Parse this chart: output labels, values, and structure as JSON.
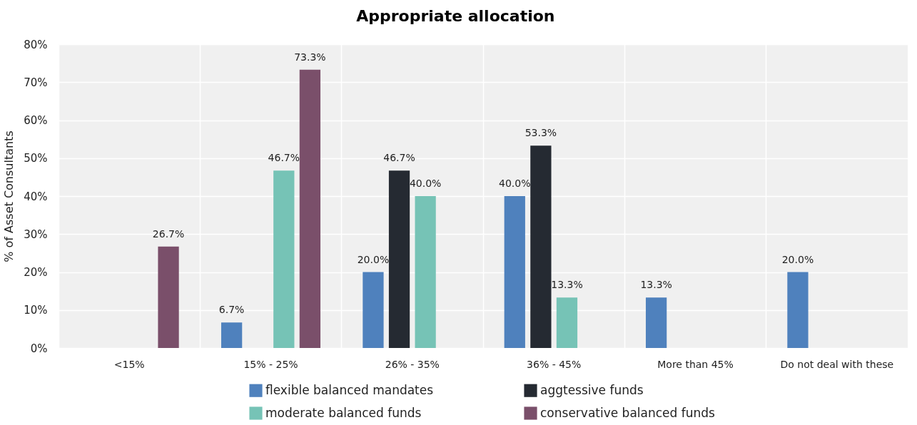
{
  "chart_data": {
    "type": "bar",
    "title": "Appropriate allocation",
    "ylabel": "% of Asset Consultants",
    "categories": [
      "<15%",
      "15% - 25%",
      "26% - 35%",
      "36% - 45%",
      "More than 45%",
      "Do not deal with these"
    ],
    "series": [
      {
        "name": "flexible balanced mandates",
        "color": "#4f81bd",
        "values": [
          null,
          6.7,
          20.0,
          40.0,
          13.3,
          20.0
        ],
        "value_labels": [
          null,
          "6.7%",
          "20.0%",
          "40.0%",
          "13.3%",
          "20.0%"
        ]
      },
      {
        "name": "aggtessive funds",
        "color": "#252a32",
        "values": [
          null,
          null,
          46.7,
          53.3,
          null,
          null
        ],
        "value_labels": [
          null,
          null,
          "46.7%",
          "53.3%",
          null,
          null
        ]
      },
      {
        "name": "moderate balanced funds",
        "color": "#76c3b6",
        "values": [
          null,
          46.7,
          40.0,
          13.3,
          null,
          null
        ],
        "value_labels": [
          null,
          "46.7%",
          "40.0%",
          "13.3%",
          null,
          null
        ]
      },
      {
        "name": "conservative balanced funds",
        "color": "#7a4f6a",
        "values": [
          26.7,
          73.3,
          null,
          null,
          null,
          null
        ],
        "value_labels": [
          "26.7%",
          "73.3%",
          null,
          null,
          null,
          null
        ]
      }
    ],
    "ylim": [
      0,
      80
    ],
    "yticks": [
      {
        "value": 0,
        "label": "0%"
      },
      {
        "value": 10,
        "label": "10%"
      },
      {
        "value": 20,
        "label": "20%"
      },
      {
        "value": 30,
        "label": "30%"
      },
      {
        "value": 40,
        "label": "40%"
      },
      {
        "value": 50,
        "label": "50%"
      },
      {
        "value": 60,
        "label": "60%"
      },
      {
        "value": 70,
        "label": "70%"
      },
      {
        "value": 80,
        "label": "80%"
      }
    ],
    "grid": true,
    "legend": "bottom"
  }
}
